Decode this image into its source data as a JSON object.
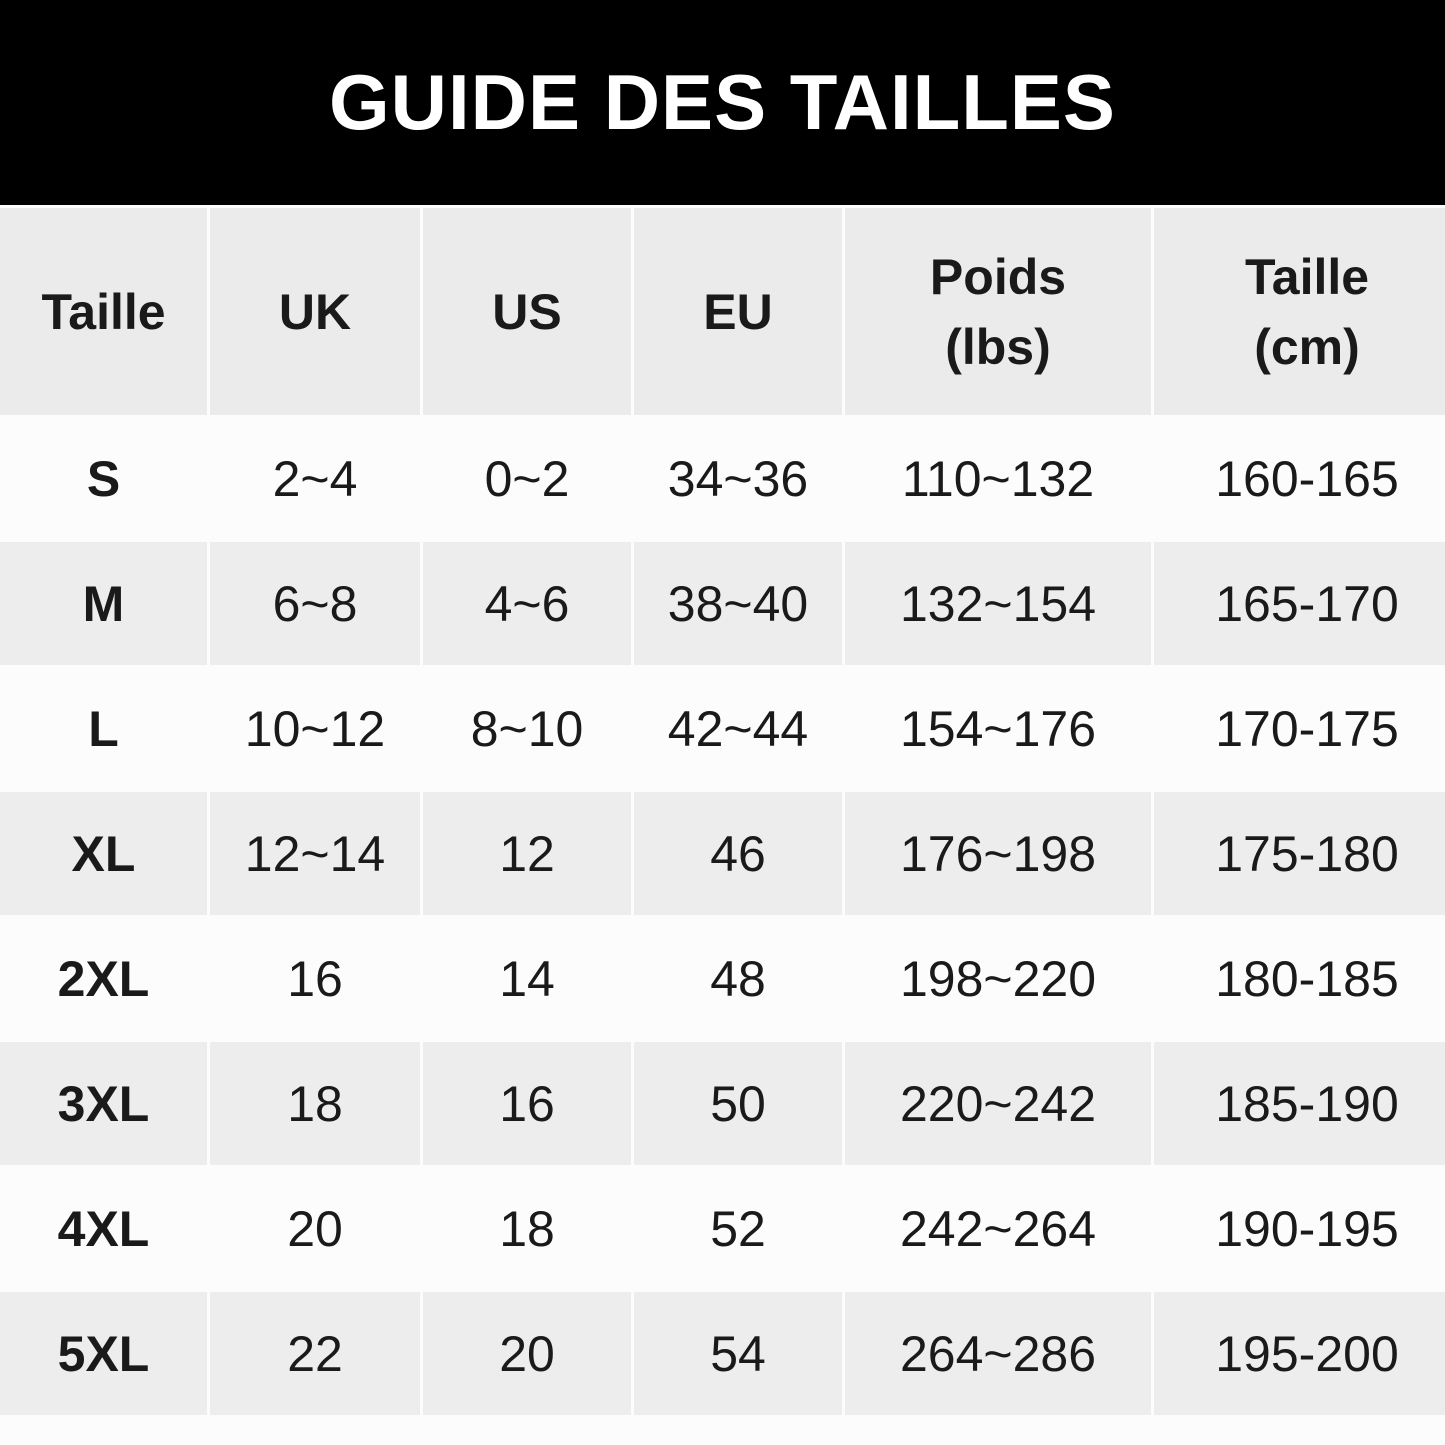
{
  "title": "GUIDE DES TAILLES",
  "table": {
    "headers": [
      "Taille",
      "UK",
      "US",
      "EU",
      "Poids\n(lbs)",
      "Taille\n(cm)"
    ],
    "rows": [
      [
        "S",
        "2~4",
        "0~2",
        "34~36",
        "110~132",
        "160-165"
      ],
      [
        "M",
        "6~8",
        "4~6",
        "38~40",
        "132~154",
        "165-170"
      ],
      [
        "L",
        "10~12",
        "8~10",
        "42~44",
        "154~176",
        "170-175"
      ],
      [
        "XL",
        "12~14",
        "12",
        "46",
        "176~198",
        "175-180"
      ],
      [
        "2XL",
        "16",
        "14",
        "48",
        "198~220",
        "180-185"
      ],
      [
        "3XL",
        "18",
        "16",
        "50",
        "220~242",
        "185-190"
      ],
      [
        "4XL",
        "20",
        "18",
        "52",
        "242~264",
        "190-195"
      ],
      [
        "5XL",
        "22",
        "20",
        "54",
        "264~286",
        "195-200"
      ]
    ]
  },
  "colors": {
    "banner": "#000000",
    "header_row": "#ebebeb",
    "alt_row": "#ededed",
    "row": "#fcfcfc"
  }
}
